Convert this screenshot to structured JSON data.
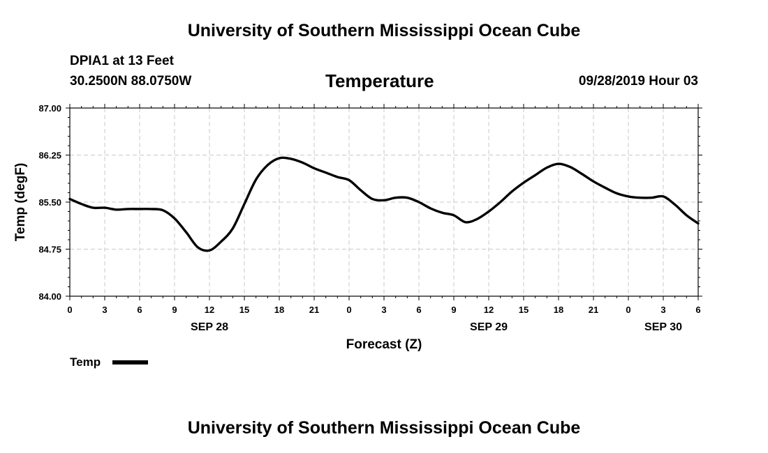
{
  "header": {
    "title": "University of Southern Mississippi Ocean Cube",
    "station": "DPIA1 at 13 Feet",
    "location": "30.2500N 88.0750W",
    "variable": "Temperature",
    "valid_time": "09/28/2019 Hour 03"
  },
  "footer": {
    "title": "University of Southern Mississippi Ocean Cube"
  },
  "legend": {
    "label": "Temp"
  },
  "chart_data": {
    "type": "line",
    "title": "Temperature",
    "xlabel": "Forecast (Z)",
    "ylabel": "Temp (degF)",
    "x_unit": "hours since SEP 28 00Z",
    "xlim": [
      0,
      54
    ],
    "ylim": [
      84.0,
      87.0
    ],
    "y_ticks": [
      "84.00",
      "84.75",
      "85.50",
      "86.25",
      "87.00"
    ],
    "x_ticks": [
      {
        "x": 0,
        "label": "0"
      },
      {
        "x": 3,
        "label": "3"
      },
      {
        "x": 6,
        "label": "6"
      },
      {
        "x": 9,
        "label": "9"
      },
      {
        "x": 12,
        "label": "12"
      },
      {
        "x": 15,
        "label": "15"
      },
      {
        "x": 18,
        "label": "18"
      },
      {
        "x": 21,
        "label": "21"
      },
      {
        "x": 24,
        "label": "0"
      },
      {
        "x": 27,
        "label": "3"
      },
      {
        "x": 30,
        "label": "6"
      },
      {
        "x": 33,
        "label": "9"
      },
      {
        "x": 36,
        "label": "12"
      },
      {
        "x": 39,
        "label": "15"
      },
      {
        "x": 42,
        "label": "18"
      },
      {
        "x": 45,
        "label": "21"
      },
      {
        "x": 48,
        "label": "0"
      },
      {
        "x": 51,
        "label": "3"
      },
      {
        "x": 54,
        "label": "6"
      }
    ],
    "date_labels": [
      {
        "x": 12,
        "label": "SEP 28"
      },
      {
        "x": 36,
        "label": "SEP 29"
      },
      {
        "x": 51,
        "label": "SEP 30"
      }
    ],
    "grid": true,
    "series": [
      {
        "name": "Temp",
        "color": "#000000",
        "x": [
          0,
          1,
          2,
          3,
          4,
          5,
          6,
          7,
          8,
          9,
          10,
          11,
          12,
          13,
          14,
          15,
          16,
          17,
          18,
          19,
          20,
          21,
          22,
          23,
          24,
          25,
          26,
          27,
          28,
          29,
          30,
          31,
          32,
          33,
          34,
          35,
          36,
          37,
          38,
          39,
          40,
          41,
          42,
          43,
          44,
          45,
          46,
          47,
          48,
          49,
          50,
          51,
          52,
          53,
          54
        ],
        "values": [
          85.55,
          85.47,
          85.41,
          85.41,
          85.38,
          85.39,
          85.39,
          85.39,
          85.37,
          85.24,
          85.02,
          84.78,
          84.73,
          84.87,
          85.08,
          85.47,
          85.86,
          86.09,
          86.2,
          86.19,
          86.13,
          86.04,
          85.97,
          85.9,
          85.85,
          85.69,
          85.55,
          85.53,
          85.57,
          85.57,
          85.5,
          85.4,
          85.33,
          85.29,
          85.18,
          85.23,
          85.35,
          85.5,
          85.67,
          85.81,
          85.93,
          86.05,
          86.11,
          86.06,
          85.95,
          85.83,
          85.73,
          85.64,
          85.59,
          85.57,
          85.57,
          85.59,
          85.46,
          85.29,
          85.16
        ]
      }
    ]
  }
}
